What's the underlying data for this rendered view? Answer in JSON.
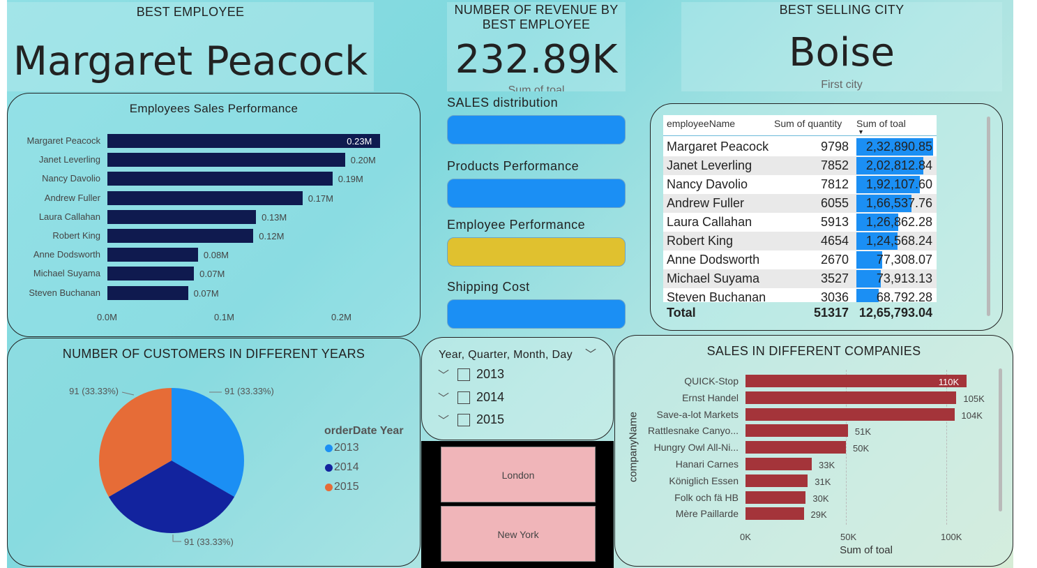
{
  "kpis": {
    "best_employee": {
      "title": "BEST EMPLOYEE",
      "value": "Margaret Peacock"
    },
    "revenue": {
      "title_line1": "NUMBER OF REVENUE BY",
      "title_line2": "BEST EMPLOYEE",
      "value": "232.89K",
      "sub": "Sum of toal"
    },
    "best_city": {
      "title": "BEST SELLING CITY",
      "value": "Boise",
      "sub": "First city"
    }
  },
  "employees_chart": {
    "chart_data": {
      "type": "bar",
      "title": "Employees Sales Performance",
      "categories": [
        "Margaret Peacock",
        "Janet Leverling",
        "Nancy Davolio",
        "Andrew Fuller",
        "Laura Callahan",
        "Robert King",
        "Anne Dodsworth",
        "Michael Suyama",
        "Steven Buchanan"
      ],
      "values": [
        0.23289,
        0.20281,
        0.19211,
        0.16654,
        0.12686,
        0.12457,
        0.07731,
        0.07391,
        0.06879
      ],
      "value_labels": [
        "0.23M",
        "0.20M",
        "0.19M",
        "0.17M",
        "0.13M",
        "0.12M",
        "0.08M",
        "0.07M",
        "0.07M"
      ],
      "xticks": [
        "0.0M",
        "0.1M",
        "0.2M"
      ],
      "xlim": [
        0,
        0.25
      ],
      "color": "#0f1a4f"
    }
  },
  "nav": {
    "items": [
      {
        "label": "SALES distribution",
        "color": "#1b8ff4"
      },
      {
        "label": "Products Performance",
        "color": "#1b8ff4"
      },
      {
        "label": "Employee Performance",
        "color": "#e0c12f"
      },
      {
        "label": "Shipping Cost",
        "color": "#1b8ff4"
      }
    ]
  },
  "table": {
    "headers": [
      "employeeName",
      "Sum of quantity",
      "Sum of toal"
    ],
    "rows": [
      {
        "name": "Margaret Peacock",
        "qty": "9798",
        "total": "2,32,890.85",
        "value": 232890.85
      },
      {
        "name": "Janet Leverling",
        "qty": "7852",
        "total": "2,02,812.84",
        "value": 202812.84
      },
      {
        "name": "Nancy Davolio",
        "qty": "7812",
        "total": "1,92,107.60",
        "value": 192107.6
      },
      {
        "name": "Andrew Fuller",
        "qty": "6055",
        "total": "1,66,537.76",
        "value": 166537.76
      },
      {
        "name": "Laura Callahan",
        "qty": "5913",
        "total": "1,26,862.28",
        "value": 126862.28
      },
      {
        "name": "Robert King",
        "qty": "4654",
        "total": "1,24,568.24",
        "value": 124568.24
      },
      {
        "name": "Anne Dodsworth",
        "qty": "2670",
        "total": "77,308.07",
        "value": 77308.07
      },
      {
        "name": "Michael Suyama",
        "qty": "3527",
        "total": "73,913.13",
        "value": 73913.13
      },
      {
        "name": "Steven Buchanan",
        "qty": "3036",
        "total": "68,792.28",
        "value": 68792.28
      }
    ],
    "total_label": "Total",
    "total_qty": "51317",
    "total_sum": "12,65,793.04",
    "bar_color": "#1b8ff4"
  },
  "customers_chart": {
    "chart_data": {
      "type": "pie",
      "title": "NUMBER OF CUSTOMERS IN DIFFERENT YEARS",
      "legend_title": "orderDate Year",
      "categories": [
        "2013",
        "2014",
        "2015"
      ],
      "values": [
        91,
        91,
        91
      ],
      "labels": [
        "91 (33.33%)",
        "91 (33.33%)",
        "91 (33.33%)"
      ],
      "colors": [
        "#1b8ff4",
        "#12239e",
        "#e66c37"
      ],
      "legend_position": "right"
    }
  },
  "slicer": {
    "title": "Year, Quarter, Month, Day",
    "items": [
      "2013",
      "2014",
      "2015"
    ]
  },
  "cities": [
    "London",
    "New York"
  ],
  "companies_chart": {
    "chart_data": {
      "type": "bar",
      "title": "SALES IN DIFFERENT COMPANIES",
      "ylabel": "companyName",
      "xlabel": "Sum of toal",
      "categories": [
        "QUICK-Stop",
        "Ernst Handel",
        "Save-a-lot Markets",
        "Rattlesnake Canyo...",
        "Hungry Owl All-Ni...",
        "Hanari Carnes",
        "Königlich Essen",
        "Folk och fä HB",
        "Mère Paillarde"
      ],
      "values": [
        110,
        105,
        104,
        51,
        50,
        33,
        31,
        30,
        29
      ],
      "value_labels": [
        "110K",
        "105K",
        "104K",
        "51K",
        "50K",
        "33K",
        "31K",
        "30K",
        "29K"
      ],
      "xticks": [
        "0K",
        "50K",
        "100K"
      ],
      "xlim": [
        0,
        120
      ],
      "color": "#a4343a"
    }
  }
}
